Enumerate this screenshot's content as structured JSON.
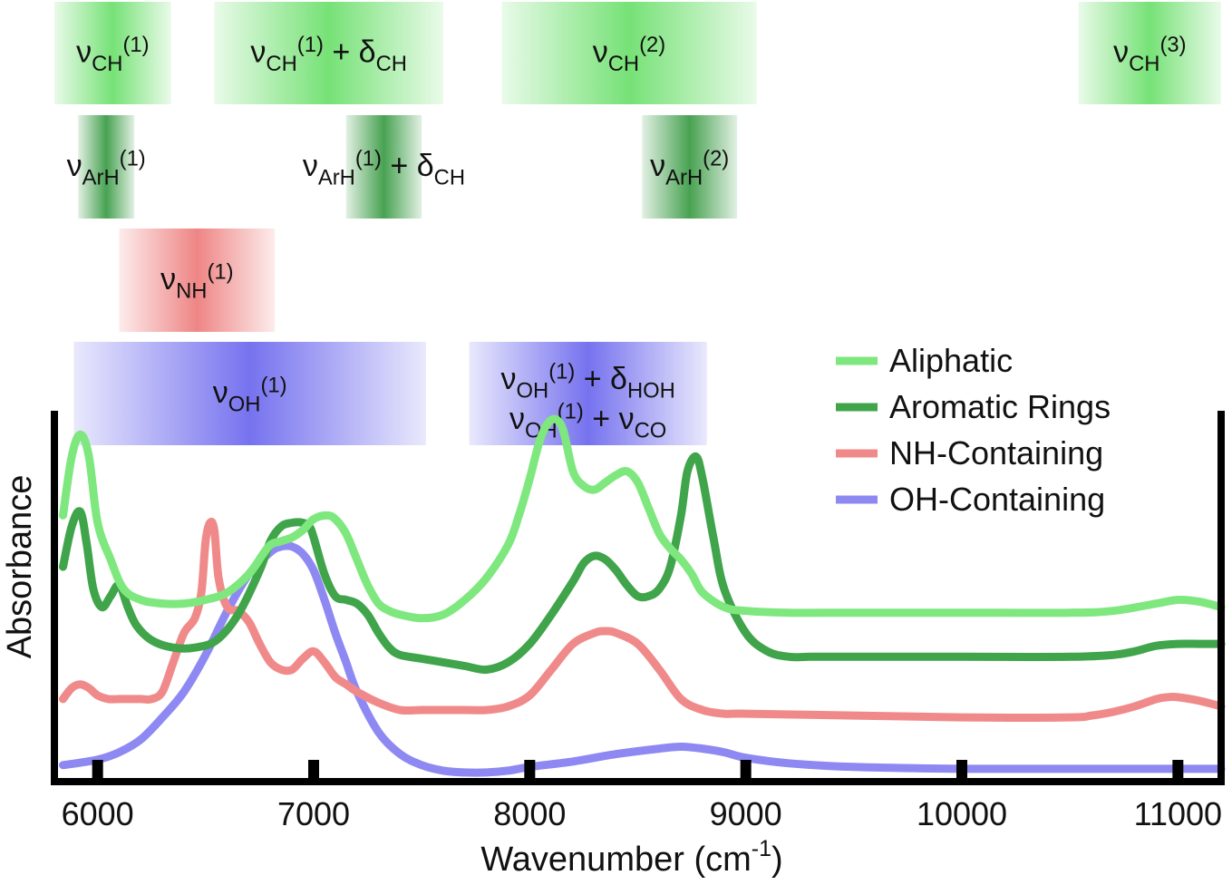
{
  "chart_data": {
    "type": "line",
    "title": "",
    "xlabel": "Wavenumber (cm",
    "xlabel_sup": "-1",
    "xlabel_close": ")",
    "ylabel": "Absorbance",
    "xlim": [
      5800,
      11200
    ],
    "ylim": [
      0,
      1
    ],
    "xticks": [
      6000,
      7000,
      8000,
      9000,
      10000,
      11000
    ],
    "xtick_labels": [
      "6000",
      "7000",
      "8000",
      "9000",
      "10000",
      "11000"
    ],
    "y_ticks_shown": false,
    "grid": false,
    "legend_position": "top-right",
    "series": [
      {
        "name": "Aliphatic",
        "color": "#7ee87e",
        "x": [
          5840,
          5880,
          5920,
          5960,
          6000,
          6060,
          6120,
          6200,
          6300,
          6400,
          6500,
          6600,
          6700,
          6760,
          6800,
          6850,
          6900,
          6950,
          7000,
          7060,
          7100,
          7150,
          7200,
          7250,
          7300,
          7350,
          7400,
          7500,
          7600,
          7700,
          7800,
          7900,
          7950,
          8000,
          8050,
          8100,
          8150,
          8200,
          8250,
          8300,
          8350,
          8400,
          8450,
          8500,
          8550,
          8600,
          8650,
          8700,
          8750,
          8800,
          8900,
          9000,
          9200,
          9500,
          10000,
          10500,
          10700,
          10900,
          11000,
          11100,
          11200
        ],
        "values": [
          0.72,
          0.88,
          0.94,
          0.88,
          0.7,
          0.6,
          0.52,
          0.49,
          0.48,
          0.48,
          0.49,
          0.51,
          0.56,
          0.61,
          0.64,
          0.65,
          0.66,
          0.68,
          0.71,
          0.72,
          0.71,
          0.67,
          0.6,
          0.53,
          0.48,
          0.46,
          0.45,
          0.44,
          0.45,
          0.49,
          0.55,
          0.64,
          0.72,
          0.82,
          0.93,
          0.98,
          0.96,
          0.84,
          0.8,
          0.79,
          0.81,
          0.83,
          0.84,
          0.81,
          0.74,
          0.67,
          0.63,
          0.6,
          0.56,
          0.51,
          0.47,
          0.46,
          0.455,
          0.455,
          0.455,
          0.455,
          0.46,
          0.48,
          0.49,
          0.485,
          0.47
        ]
      },
      {
        "name": "Aromatic Rings",
        "color": "#3fa44a",
        "x": [
          5840,
          5880,
          5920,
          5950,
          5980,
          6020,
          6060,
          6100,
          6140,
          6180,
          6250,
          6350,
          6450,
          6550,
          6650,
          6750,
          6800,
          6850,
          6900,
          6950,
          6980,
          7000,
          7050,
          7100,
          7150,
          7200,
          7250,
          7300,
          7350,
          7400,
          7500,
          7600,
          7700,
          7800,
          7900,
          8000,
          8100,
          8200,
          8250,
          8300,
          8350,
          8400,
          8450,
          8500,
          8550,
          8600,
          8650,
          8700,
          8730,
          8770,
          8800,
          8850,
          8900,
          9000,
          9100,
          9200,
          9300,
          9500,
          10000,
          10500,
          10700,
          10800,
          10900,
          11000,
          11100,
          11200
        ],
        "values": [
          0.58,
          0.69,
          0.73,
          0.64,
          0.52,
          0.47,
          0.5,
          0.53,
          0.47,
          0.42,
          0.38,
          0.36,
          0.36,
          0.38,
          0.45,
          0.57,
          0.65,
          0.69,
          0.7,
          0.7,
          0.69,
          0.66,
          0.56,
          0.5,
          0.49,
          0.48,
          0.45,
          0.4,
          0.36,
          0.34,
          0.33,
          0.32,
          0.31,
          0.3,
          0.32,
          0.37,
          0.45,
          0.54,
          0.59,
          0.61,
          0.6,
          0.57,
          0.53,
          0.5,
          0.5,
          0.52,
          0.58,
          0.72,
          0.84,
          0.88,
          0.82,
          0.66,
          0.52,
          0.4,
          0.35,
          0.335,
          0.335,
          0.335,
          0.335,
          0.335,
          0.34,
          0.35,
          0.365,
          0.37,
          0.37,
          0.37
        ]
      },
      {
        "name": "NH-Containing",
        "color": "#f08a8a",
        "x": [
          5840,
          5880,
          5920,
          5960,
          6000,
          6050,
          6100,
          6150,
          6200,
          6250,
          6300,
          6350,
          6400,
          6450,
          6480,
          6500,
          6520,
          6540,
          6560,
          6600,
          6650,
          6700,
          6750,
          6800,
          6850,
          6900,
          6950,
          7000,
          7050,
          7100,
          7150,
          7200,
          7300,
          7400,
          7500,
          7600,
          7700,
          7800,
          7900,
          8000,
          8100,
          8200,
          8300,
          8350,
          8400,
          8500,
          8600,
          8700,
          8800,
          8900,
          9000,
          9500,
          10000,
          10500,
          10600,
          10700,
          10800,
          10900,
          10950,
          11000,
          11100,
          11200
        ],
        "values": [
          0.22,
          0.25,
          0.26,
          0.25,
          0.23,
          0.22,
          0.22,
          0.22,
          0.22,
          0.22,
          0.24,
          0.32,
          0.4,
          0.44,
          0.51,
          0.65,
          0.7,
          0.68,
          0.55,
          0.47,
          0.46,
          0.43,
          0.37,
          0.32,
          0.3,
          0.3,
          0.33,
          0.35,
          0.32,
          0.28,
          0.26,
          0.24,
          0.21,
          0.19,
          0.19,
          0.19,
          0.19,
          0.19,
          0.2,
          0.23,
          0.3,
          0.37,
          0.4,
          0.405,
          0.4,
          0.37,
          0.3,
          0.22,
          0.19,
          0.18,
          0.18,
          0.175,
          0.17,
          0.17,
          0.175,
          0.185,
          0.2,
          0.22,
          0.225,
          0.225,
          0.215,
          0.2
        ]
      },
      {
        "name": "OH-Containing",
        "color": "#8e89f2",
        "x": [
          5840,
          6000,
          6100,
          6200,
          6300,
          6400,
          6500,
          6600,
          6700,
          6800,
          6850,
          6900,
          6950,
          7000,
          7050,
          7100,
          7150,
          7200,
          7300,
          7400,
          7500,
          7600,
          7700,
          7800,
          7900,
          8000,
          8200,
          8400,
          8600,
          8700,
          8800,
          8900,
          9000,
          9200,
          9500,
          10000,
          10500,
          11000,
          11200
        ],
        "values": [
          0.04,
          0.055,
          0.075,
          0.11,
          0.17,
          0.24,
          0.34,
          0.46,
          0.56,
          0.62,
          0.635,
          0.635,
          0.615,
          0.57,
          0.49,
          0.4,
          0.32,
          0.24,
          0.13,
          0.07,
          0.04,
          0.025,
          0.02,
          0.02,
          0.025,
          0.035,
          0.05,
          0.07,
          0.085,
          0.09,
          0.085,
          0.075,
          0.06,
          0.045,
          0.035,
          0.03,
          0.03,
          0.03,
          0.03
        ]
      }
    ],
    "band_groups": [
      {
        "name": "aliphatic-bands",
        "color": "#6fe06f",
        "bands": [
          {
            "x_from": 5800,
            "x_to": 6340,
            "main": "ν",
            "sub": "CH",
            "sup": "(1)",
            "extra": ""
          },
          {
            "x_from": 6540,
            "x_to": 7600,
            "main": "ν",
            "sub": "CH",
            "sup": "(1)",
            "extra": " + δ",
            "extra_sub": "CH"
          },
          {
            "x_from": 7870,
            "x_to": 9050,
            "main": "ν",
            "sub": "CH",
            "sup": "(2)",
            "extra": ""
          },
          {
            "x_from": 10540,
            "x_to": 11200,
            "main": "ν",
            "sub": "CH",
            "sup": "(3)",
            "extra": ""
          }
        ]
      },
      {
        "name": "aromatic-bands",
        "color": "#3e9d48",
        "bands": [
          {
            "x_from": 5910,
            "x_to": 6170,
            "main": "ν",
            "sub": "ArH",
            "sup": "(1)",
            "extra": ""
          },
          {
            "x_from": 7150,
            "x_to": 7500,
            "main": "ν",
            "sub": "ArH",
            "sup": "(1)",
            "extra": " + δ",
            "extra_sub": "CH"
          },
          {
            "x_from": 8520,
            "x_to": 8960,
            "main": "ν",
            "sub": "ArH",
            "sup": "(2)",
            "extra": ""
          }
        ]
      },
      {
        "name": "nh-bands",
        "color": "#ee7f7f",
        "bands": [
          {
            "x_from": 6100,
            "x_to": 6820,
            "main": "ν",
            "sub": "NH",
            "sup": "(1)",
            "extra": ""
          }
        ]
      },
      {
        "name": "oh-bands",
        "color": "#6f6bee",
        "bands": [
          {
            "x_from": 5890,
            "x_to": 7520,
            "main": "ν",
            "sub": "OH",
            "sup": "(1)",
            "extra": ""
          },
          {
            "x_from": 7720,
            "x_to": 8820,
            "line1": {
              "main": "ν",
              "sub": "OH",
              "sup": "(1)",
              "extra": " + δ",
              "extra_sub": "HOH"
            },
            "line2": {
              "main": "ν",
              "sub": "OH",
              "sup": "(1)",
              "extra": " + ν",
              "extra_sub": "CO"
            }
          }
        ]
      }
    ]
  }
}
